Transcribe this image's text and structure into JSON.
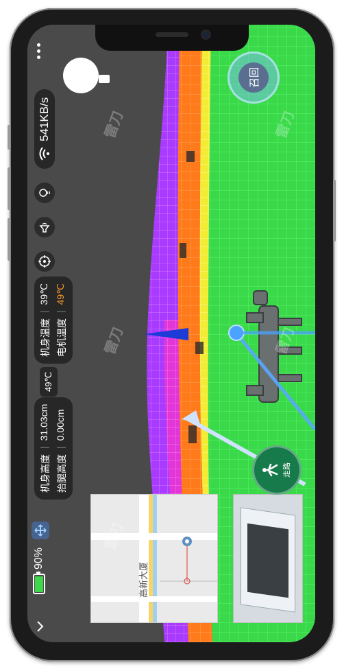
{
  "status": {
    "battery_percent": "90%",
    "battery_level": 0.9,
    "network_speed": "541KB/s"
  },
  "telemetry": {
    "body_temp_label": "机身温度",
    "body_temp_value": "39℃",
    "motor_temp_label": "电机温度",
    "motor_temp_value": "49℃",
    "misc_temp_value": "49℃",
    "body_height_label": "机身高度",
    "body_height_value": "31.03cm",
    "leg_height_label": "抬腿高度",
    "leg_height_value": "0.00cm"
  },
  "controls": {
    "recall_label": "召回",
    "walk_label": "走路"
  },
  "map": {
    "building_label": "高新大厦"
  },
  "watermark": {
    "brand": "雷刀"
  },
  "colors": {
    "voxel_green": "#3fe24a",
    "voxel_orange": "#ff7a1a",
    "voxel_purple": "#b63bff",
    "voxel_yellow": "#f6f03a",
    "accent_blue": "#4aa3ff",
    "motor_temp_orange": "#ff9a2e",
    "walk_button_green": "#167a4a"
  },
  "icons": {
    "back": "chevron-down-icon",
    "move": "move-arrows-icon",
    "more": "more-dots-icon",
    "wifi": "wifi-signal-icon",
    "light": "lightbulb-icon",
    "sound": "speaker-icon",
    "target": "crosshair-icon",
    "walk": "walking-person-icon"
  }
}
